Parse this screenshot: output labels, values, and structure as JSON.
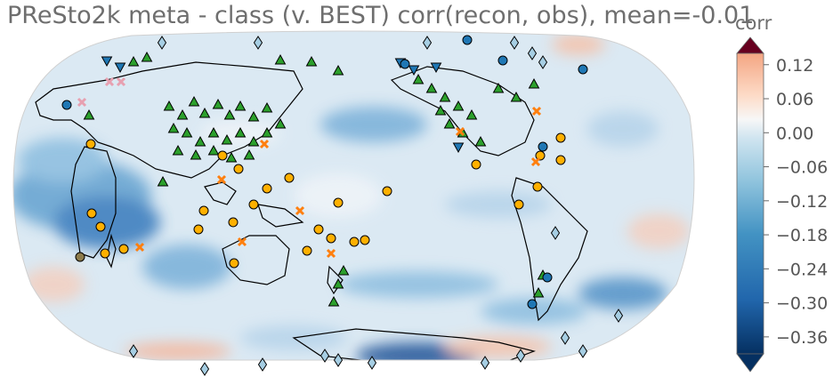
{
  "title": "PReSto2k meta - class (v. BEST) corr(recon, obs), mean=-0.01",
  "colorbar": {
    "label": "corr",
    "ticks": [
      "0.12",
      "0.06",
      "0.00",
      "−0.06",
      "−0.12",
      "−0.18",
      "−0.24",
      "−0.30",
      "−0.36"
    ],
    "tick_values": [
      0.12,
      0.06,
      0.0,
      -0.06,
      -0.12,
      -0.18,
      -0.24,
      -0.3,
      -0.36
    ],
    "range": [
      -0.39,
      0.14
    ],
    "colors": {
      "max": "#67001f",
      "high": "#f4a582",
      "mid": "#f7f7f7",
      "low": "#4393c3",
      "min": "#053061"
    }
  },
  "map": {
    "projection": "Robinson, centered on the Pacific",
    "mean_correlation": -0.01,
    "marker_colors": {
      "triangle": "#2ca02c",
      "circle_blue": "#1f77b4",
      "circle_orange": "#ffb000",
      "down_triangle": "#1f77b4",
      "diamond": "#a6cee3",
      "cross_orange": "#ff7f0e",
      "cross_pink": "#e7a0b0",
      "circle_brown": "#8c7a4a"
    }
  }
}
